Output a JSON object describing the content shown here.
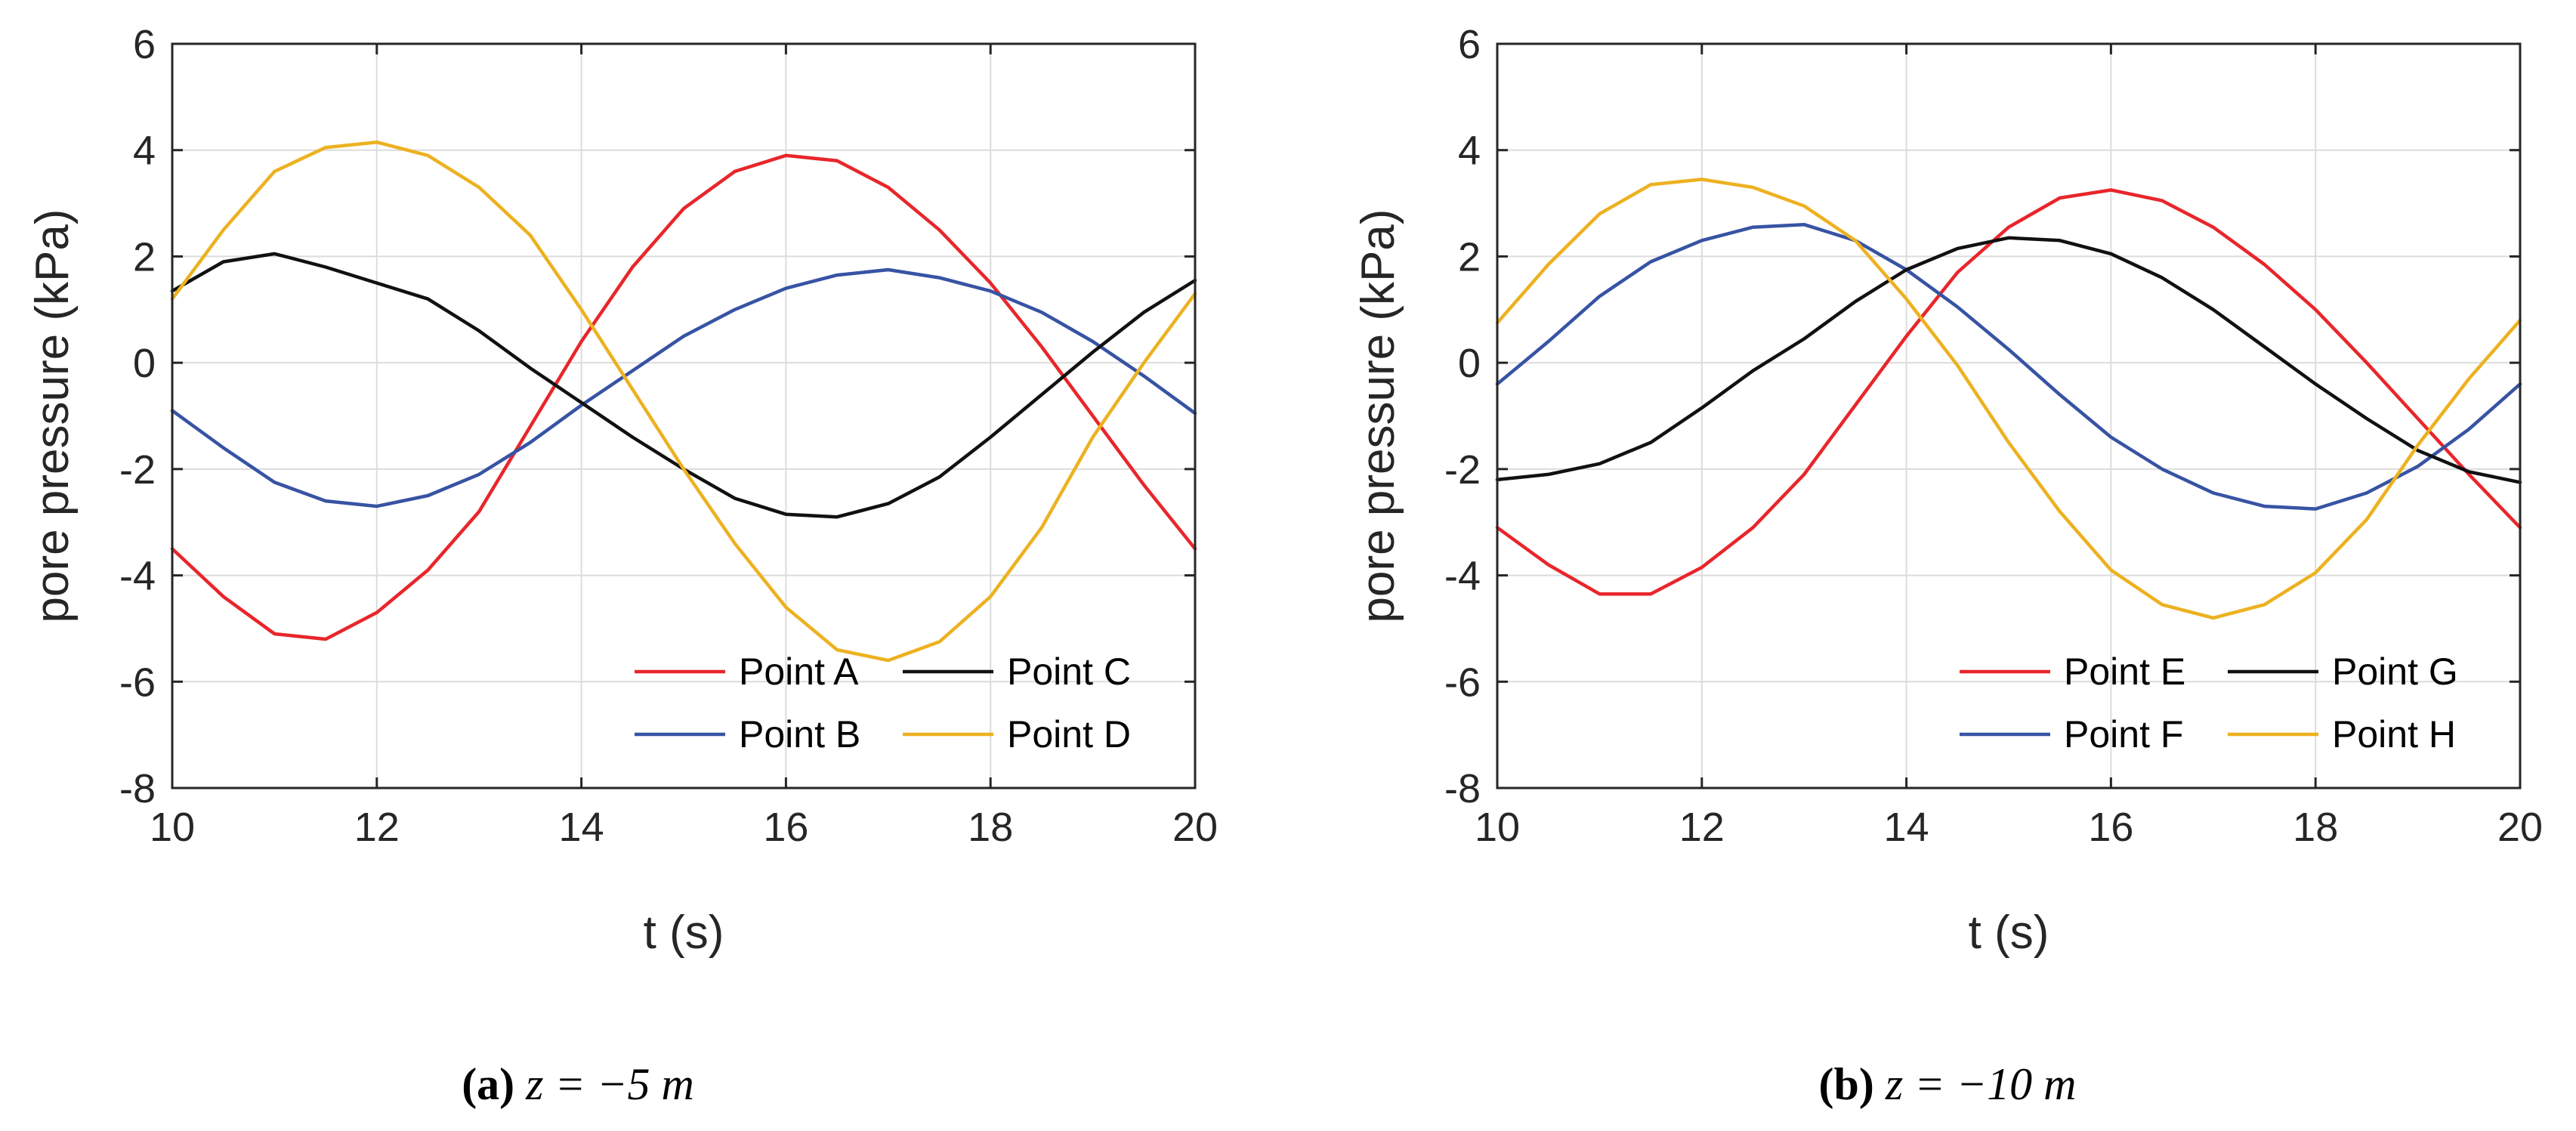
{
  "chart_data": [
    {
      "type": "line",
      "xlabel": "t (s)",
      "ylabel": "pore pressure (kPa)",
      "xlim": [
        10,
        20
      ],
      "ylim": [
        -8,
        6
      ],
      "xticks": [
        10,
        12,
        14,
        16,
        18,
        20
      ],
      "yticks": [
        6,
        4,
        2,
        0,
        -2,
        -4,
        -6,
        -8
      ],
      "xtick_labels": [
        "10",
        "12",
        "14",
        "16",
        "18",
        "20"
      ],
      "ytick_labels": [
        "6",
        "4",
        "2",
        "0",
        "-2",
        "-4",
        "-6",
        "-8"
      ],
      "grid": true,
      "legend_position": "bottom-right",
      "caption": {
        "label": "(a)",
        "expr": "z = −5 m"
      },
      "x": [
        10,
        10.5,
        11,
        11.5,
        12,
        12.5,
        13,
        13.5,
        14,
        14.5,
        15,
        15.5,
        16,
        16.5,
        17,
        17.5,
        18,
        18.5,
        19,
        19.5,
        20
      ],
      "series": [
        {
          "name": "Point A",
          "color": "#e8262b",
          "values": [
            -3.5,
            -4.4,
            -5.1,
            -5.2,
            -4.7,
            -3.9,
            -2.8,
            -1.2,
            0.4,
            1.8,
            2.9,
            3.6,
            3.9,
            3.8,
            3.3,
            2.5,
            1.5,
            0.3,
            -1.0,
            -2.3,
            -3.5
          ]
        },
        {
          "name": "Point B",
          "color": "#3753a3",
          "values": [
            -0.9,
            -1.6,
            -2.25,
            -2.6,
            -2.7,
            -2.5,
            -2.1,
            -1.5,
            -0.8,
            -0.15,
            0.5,
            1.0,
            1.4,
            1.65,
            1.75,
            1.6,
            1.35,
            0.95,
            0.4,
            -0.25,
            -0.95
          ]
        },
        {
          "name": "Point C",
          "color": "#111111",
          "values": [
            1.35,
            1.9,
            2.05,
            1.8,
            1.5,
            1.2,
            0.6,
            -0.1,
            -0.75,
            -1.4,
            -2.0,
            -2.55,
            -2.85,
            -2.9,
            -2.65,
            -2.15,
            -1.4,
            -0.6,
            0.2,
            0.95,
            1.55
          ]
        },
        {
          "name": "Point D",
          "color": "#edb120",
          "values": [
            1.2,
            2.5,
            3.6,
            4.05,
            4.15,
            3.9,
            3.3,
            2.4,
            1.0,
            -0.5,
            -2.0,
            -3.4,
            -4.6,
            -5.4,
            -5.6,
            -5.25,
            -4.4,
            -3.1,
            -1.4,
            0.0,
            1.3
          ]
        }
      ]
    },
    {
      "type": "line",
      "xlabel": "t (s)",
      "ylabel": "pore pressure (kPa)",
      "xlim": [
        10,
        20
      ],
      "ylim": [
        -8,
        6
      ],
      "xticks": [
        10,
        12,
        14,
        16,
        18,
        20
      ],
      "yticks": [
        6,
        4,
        2,
        0,
        -2,
        -4,
        -6,
        -8
      ],
      "xtick_labels": [
        "10",
        "12",
        "14",
        "16",
        "18",
        "20"
      ],
      "ytick_labels": [
        "6",
        "4",
        "2",
        "0",
        "-2",
        "-4",
        "-6",
        "-8"
      ],
      "grid": true,
      "legend_position": "bottom-right",
      "caption": {
        "label": "(b)",
        "expr": "z = −10 m"
      },
      "x": [
        10,
        10.5,
        11,
        11.5,
        12,
        12.5,
        13,
        13.5,
        14,
        14.5,
        15,
        15.5,
        16,
        16.5,
        17,
        17.5,
        18,
        18.5,
        19,
        19.5,
        20
      ],
      "series": [
        {
          "name": "Point E",
          "color": "#e8262b",
          "values": [
            -3.1,
            -3.8,
            -4.35,
            -4.35,
            -3.85,
            -3.1,
            -2.1,
            -0.8,
            0.5,
            1.7,
            2.55,
            3.1,
            3.25,
            3.05,
            2.55,
            1.85,
            1.0,
            0.0,
            -1.05,
            -2.1,
            -3.1
          ]
        },
        {
          "name": "Point F",
          "color": "#3753a3",
          "values": [
            -0.4,
            0.4,
            1.25,
            1.9,
            2.3,
            2.55,
            2.6,
            2.3,
            1.75,
            1.05,
            0.25,
            -0.6,
            -1.4,
            -2.0,
            -2.45,
            -2.7,
            -2.75,
            -2.45,
            -1.95,
            -1.25,
            -0.4
          ]
        },
        {
          "name": "Point G",
          "color": "#111111",
          "values": [
            -2.2,
            -2.1,
            -1.9,
            -1.5,
            -0.85,
            -0.15,
            0.45,
            1.15,
            1.75,
            2.15,
            2.35,
            2.3,
            2.05,
            1.6,
            1.0,
            0.3,
            -0.4,
            -1.05,
            -1.65,
            -2.05,
            -2.25
          ]
        },
        {
          "name": "Point H",
          "color": "#edb120",
          "values": [
            0.75,
            1.85,
            2.8,
            3.35,
            3.45,
            3.3,
            2.95,
            2.3,
            1.2,
            -0.05,
            -1.5,
            -2.8,
            -3.9,
            -4.55,
            -4.8,
            -4.55,
            -3.95,
            -2.95,
            -1.55,
            -0.3,
            0.8
          ]
        }
      ]
    }
  ]
}
